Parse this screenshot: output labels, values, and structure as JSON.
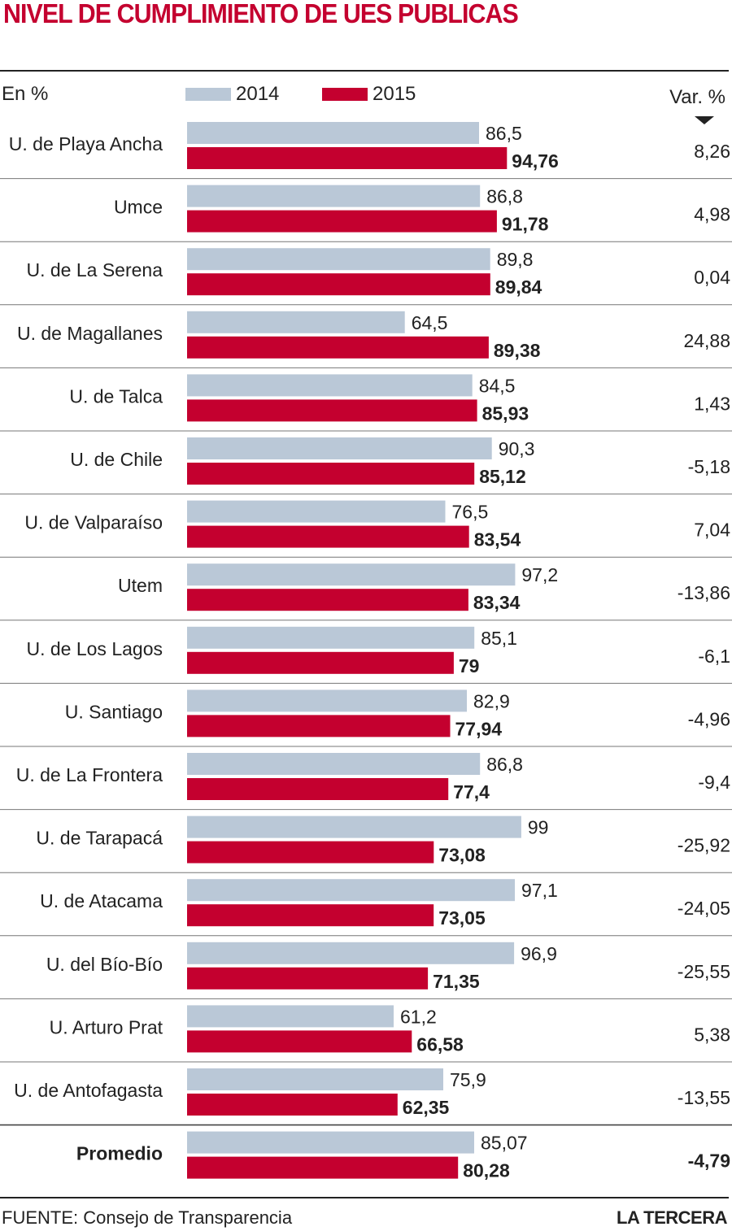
{
  "title": "NIVEL DE CUMPLIMIENTO DE UES PUBLICAS",
  "unit_label": "En %",
  "var_label": "Var. %",
  "source": "FUENTE: Consejo de Transparencia",
  "brand": "LA TERCERA",
  "colors": {
    "2014": "#bac8d7",
    "2015": "#c4002f"
  },
  "chart_data": {
    "type": "bar",
    "orientation": "horizontal",
    "title": "NIVEL DE CUMPLIMIENTO DE UES PUBLICAS",
    "xlabel": "En %",
    "xlim": [
      0,
      100
    ],
    "legend": [
      "2014",
      "2015"
    ],
    "categories": [
      "U. de Playa Ancha",
      "Umce",
      "U. de La Serena",
      "U. de Magallanes",
      "U. de Talca",
      "U. de Chile",
      "U. de Valparaíso",
      "Utem",
      "U. de Los Lagos",
      "U. Santiago",
      "U. de La Frontera",
      "U. de Tarapacá",
      "U. de Atacama",
      "U. del Bío-Bío",
      "U. Arturo Prat",
      "U. de Antofagasta",
      "Promedio"
    ],
    "series": [
      {
        "name": "2014",
        "values": [
          86.5,
          86.8,
          89.8,
          64.5,
          84.5,
          90.3,
          76.5,
          97.2,
          85.1,
          82.9,
          86.8,
          99,
          97.1,
          96.9,
          61.2,
          75.9,
          85.07
        ],
        "labels": [
          "86,5",
          "86,8",
          "89,8",
          "64,5",
          "84,5",
          "90,3",
          "76,5",
          "97,2",
          "85,1",
          "82,9",
          "86,8",
          "99",
          "97,1",
          "96,9",
          "61,2",
          "75,9",
          "85,07"
        ]
      },
      {
        "name": "2015",
        "values": [
          94.76,
          91.78,
          89.84,
          89.38,
          85.93,
          85.12,
          83.54,
          83.34,
          79,
          77.94,
          77.4,
          73.08,
          73.05,
          71.35,
          66.58,
          62.35,
          80.28
        ],
        "labels": [
          "94,76",
          "91,78",
          "89,84",
          "89,38",
          "85,93",
          "85,12",
          "83,54",
          "83,34",
          "79",
          "77,94",
          "77,4",
          "73,08",
          "73,05",
          "71,35",
          "66,58",
          "62,35",
          "80,28"
        ]
      }
    ],
    "variation": [
      "8,26",
      "4,98",
      "0,04",
      "24,88",
      "1,43",
      "-5,18",
      "7,04",
      "-13,86",
      "-6,1",
      "-4,96",
      "-9,4",
      "-25,92",
      "-24,05",
      "-25,55",
      "5,38",
      "-13,55",
      "-4,79"
    ]
  }
}
